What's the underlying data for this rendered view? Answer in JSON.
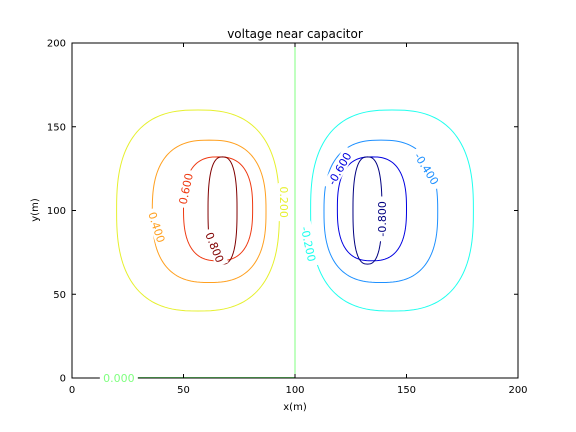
{
  "chart_data": {
    "type": "contour",
    "title": "voltage near capacitor",
    "xlabel": "x(m)",
    "ylabel": "y(m)",
    "xlim": [
      0,
      200
    ],
    "ylim": [
      0,
      200
    ],
    "xticks": [
      0,
      50,
      100,
      150,
      200
    ],
    "yticks": [
      0,
      50,
      100,
      150,
      200
    ],
    "xtick_labels": [
      "0",
      "50",
      "100",
      "150",
      "200"
    ],
    "ytick_labels": [
      "0",
      "50",
      "100",
      "150",
      "200"
    ],
    "grid": false,
    "legend": "none",
    "contours": [
      {
        "level": 0.0,
        "color": "#80ff80",
        "shape": "vline",
        "x": 100,
        "y": [
          0,
          200
        ]
      },
      {
        "level": 0.0,
        "color": "#80ff80",
        "shape": "hline",
        "y": 0.3,
        "x": [
          13,
          100
        ]
      },
      {
        "level": 0.2,
        "color": "#e6f02e",
        "shape": "oval",
        "cx": 61,
        "cy": 100,
        "rx": 77,
        "ry": 60,
        "xmin": 20,
        "xmax": 93,
        "ymin": 40,
        "ymax": 160
      },
      {
        "level": 0.4,
        "color": "#ffa020",
        "shape": "oval",
        "cx": 61,
        "cy": 100,
        "rx": 45,
        "ry": 40,
        "xmin": 36,
        "xmax": 87,
        "ymin": 57,
        "ymax": 142
      },
      {
        "level": 0.6,
        "color": "#ee3a12",
        "shape": "oval",
        "cx": 63,
        "cy": 100,
        "rx": 30,
        "ry": 28,
        "xmin": 50,
        "xmax": 81,
        "ymin": 70,
        "ymax": 132
      },
      {
        "level": 0.8,
        "color": "#800000",
        "shape": "oval",
        "cx": 70,
        "cy": 100,
        "rx": 16,
        "ry": 26,
        "xmin": 61,
        "xmax": 74,
        "ymin": 68,
        "ymax": 132
      },
      {
        "level": -0.2,
        "color": "#20ffee",
        "shape": "oval",
        "cx": 139,
        "cy": 100,
        "rx": 77,
        "ry": 60,
        "xmin": 107,
        "xmax": 180,
        "ymin": 40,
        "ymax": 160
      },
      {
        "level": -0.4,
        "color": "#1e90ff",
        "shape": "oval",
        "cx": 139,
        "cy": 100,
        "rx": 45,
        "ry": 40,
        "xmin": 113,
        "xmax": 164,
        "ymin": 57,
        "ymax": 142
      },
      {
        "level": -0.6,
        "color": "#0000e0",
        "shape": "oval",
        "cx": 137,
        "cy": 100,
        "rx": 30,
        "ry": 28,
        "xmin": 119,
        "xmax": 150,
        "ymin": 70,
        "ymax": 132
      },
      {
        "level": -0.8,
        "color": "#000080",
        "shape": "oval",
        "cx": 130,
        "cy": 100,
        "rx": 16,
        "ry": 26,
        "xmin": 126,
        "xmax": 139,
        "ymin": 68,
        "ymax": 132
      }
    ],
    "contour_labels": [
      {
        "text": "0.000",
        "x": 21,
        "y": 0,
        "color": "#80ff80",
        "rotate": 0
      },
      {
        "text": "0.200",
        "x": 95,
        "y": 105,
        "color": "#e6f02e",
        "rotate": 90
      },
      {
        "text": "0.400",
        "x": 38,
        "y": 90,
        "color": "#ffa020",
        "rotate": 72
      },
      {
        "text": "0.600",
        "x": 51,
        "y": 113,
        "color": "#ee3a12",
        "rotate": -78
      },
      {
        "text": "0.800",
        "x": 64,
        "y": 78,
        "color": "#800000",
        "rotate": 68
      },
      {
        "text": "-0.200",
        "x": 106,
        "y": 80,
        "color": "#20ffee",
        "rotate": 78
      },
      {
        "text": "-0.400",
        "x": 159,
        "y": 125,
        "color": "#1e90ff",
        "rotate": 58
      },
      {
        "text": "-0.600",
        "x": 120,
        "y": 125,
        "color": "#0000e0",
        "rotate": -60
      },
      {
        "text": "-0.800",
        "x": 139,
        "y": 95,
        "color": "#000080",
        "rotate": -90
      }
    ]
  }
}
